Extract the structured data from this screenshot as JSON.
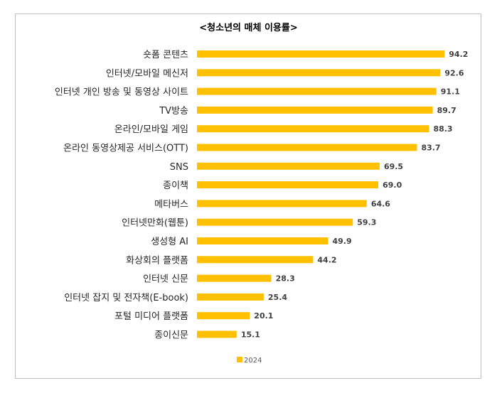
{
  "chart_data": {
    "type": "bar",
    "orientation": "horizontal",
    "title": "<청소년의 매체 이용률>",
    "categories": [
      "숏폼 콘텐츠",
      "인터넷/모바일 메신저",
      "인터넷 개인 방송 및 동영상 사이트",
      "TV방송",
      "온라인/모바일 게임",
      "온라인 동영상제공 서비스(OTT)",
      "SNS",
      "종이책",
      "메타버스",
      "인터넷만화(웹툰)",
      "생성형 AI",
      "화상회의 플랫폼",
      "인터넷 신문",
      "인터넷 잡지 및 전자책(E-book)",
      "포털 미디어 플랫폼",
      "종이신문"
    ],
    "series": [
      {
        "name": "2024",
        "color": "#FFC000",
        "values": [
          94.2,
          92.6,
          91.1,
          89.7,
          88.3,
          83.7,
          69.5,
          69.0,
          64.6,
          59.3,
          49.9,
          44.2,
          28.3,
          25.4,
          20.1,
          15.1
        ],
        "labels": [
          "94.2",
          "92.6",
          "91.1",
          "89.7",
          "88.3",
          "83.7",
          "69.5",
          "69.0",
          "64.6",
          "59.3",
          "49.9",
          "44.2",
          "28.3",
          "25.4",
          "20.1",
          "15.1"
        ]
      }
    ],
    "xlim": [
      0,
      100
    ],
    "grid": false,
    "legend_position": "bottom"
  }
}
